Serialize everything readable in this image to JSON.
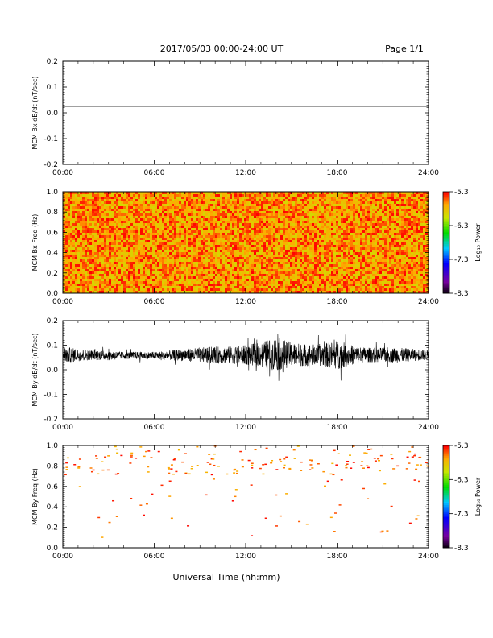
{
  "header": {
    "title": "2017/05/03  00:00-24:00 UT",
    "page": "Page 1/1"
  },
  "xaxis_label": "Universal Time (hh:mm)",
  "chart_data": [
    {
      "type": "line",
      "panel": "bx-dbdt",
      "ylabel": "MCM Bx dB/dt (nT/sec)",
      "ylim": [
        -0.2,
        0.2
      ],
      "xlim": [
        0,
        24
      ],
      "x_tick_labels": [
        "00:00",
        "06:00",
        "12:00",
        "18:00",
        "24:00"
      ],
      "y_tick_labels": [
        "-0.2",
        "-0.1",
        "0.0",
        "0.1",
        "0.2"
      ],
      "y_ticks": [
        -0.2,
        -0.1,
        0.0,
        0.1,
        0.2
      ],
      "series": [
        {
          "x": [
            0,
            24
          ],
          "y": [
            0.025,
            0.025
          ]
        }
      ]
    },
    {
      "type": "heatmap",
      "panel": "bx-spectrogram",
      "ylabel": "MCM Bx Freq (Hz)",
      "ylim": [
        0,
        1.0
      ],
      "xlim": [
        0,
        24
      ],
      "x_tick_labels": [
        "00:00",
        "06:00",
        "12:00",
        "18:00",
        "24:00"
      ],
      "y_tick_labels": [
        "0.0",
        "0.2",
        "0.4",
        "0.6",
        "0.8",
        "1.0"
      ],
      "y_ticks": [
        0,
        0.2,
        0.4,
        0.6,
        0.8,
        1.0
      ],
      "colorbar": {
        "label": "Log₁₀ Power",
        "tick_labels": [
          "-5.3",
          "-6.3",
          "-7.3",
          "-8.3"
        ],
        "ticks": [
          -5.3,
          -6.3,
          -7.3,
          -8.3
        ],
        "range": [
          -8.3,
          -5.3
        ]
      },
      "description_values": "dense broadband power, mostly -5.3 to -6.0 (red/orange/yellow) across all times and frequencies"
    },
    {
      "type": "line",
      "panel": "by-dbdt",
      "ylabel": "MCM By dB/dt (nT/sec)",
      "ylim": [
        -0.2,
        0.2
      ],
      "xlim": [
        0,
        24
      ],
      "x_tick_labels": [
        "00:00",
        "06:00",
        "12:00",
        "18:00",
        "24:00"
      ],
      "y_tick_labels": [
        "-0.2",
        "-0.1",
        "0.0",
        "0.1",
        "0.2"
      ],
      "y_ticks": [
        -0.2,
        -0.1,
        0.0,
        0.1,
        0.2
      ],
      "series": [
        {
          "x": [
            0,
            1,
            2,
            3,
            4,
            5,
            6,
            7,
            8,
            9,
            10,
            11,
            12,
            13,
            14,
            15,
            16,
            17,
            18,
            19,
            20,
            21,
            22,
            23,
            24
          ],
          "y_center": [
            0.06,
            0.06,
            0.06,
            0.058,
            0.058,
            0.058,
            0.058,
            0.058,
            0.06,
            0.06,
            0.06,
            0.06,
            0.06,
            0.062,
            0.065,
            0.062,
            0.06,
            0.06,
            0.06,
            0.06,
            0.06,
            0.06,
            0.06,
            0.06,
            0.06
          ],
          "amplitude": [
            0.035,
            0.025,
            0.02,
            0.02,
            0.015,
            0.015,
            0.015,
            0.02,
            0.025,
            0.03,
            0.035,
            0.035,
            0.04,
            0.05,
            0.07,
            0.05,
            0.045,
            0.045,
            0.06,
            0.04,
            0.03,
            0.03,
            0.03,
            0.025,
            0.02
          ]
        }
      ]
    },
    {
      "type": "heatmap",
      "panel": "by-spectrogram",
      "ylabel": "MCM By Freq (Hz)",
      "ylim": [
        0,
        1.0
      ],
      "xlim": [
        0,
        24
      ],
      "x_tick_labels": [
        "00:00",
        "06:00",
        "12:00",
        "18:00",
        "24:00"
      ],
      "y_tick_labels": [
        "0.0",
        "0.2",
        "0.4",
        "0.6",
        "0.8",
        "1.0"
      ],
      "y_ticks": [
        0,
        0.2,
        0.4,
        0.6,
        0.8,
        1.0
      ],
      "colorbar": {
        "label": "Log₁₀ Power",
        "tick_labels": [
          "-5.3",
          "-6.3",
          "-7.3",
          "-8.3"
        ],
        "ticks": [
          -5.3,
          -6.3,
          -7.3,
          -8.3
        ],
        "range": [
          -8.3,
          -5.3
        ]
      },
      "description_values": "sparse red points, concentrated at 0.75-1.0 Hz, few below 0.4 Hz"
    }
  ]
}
